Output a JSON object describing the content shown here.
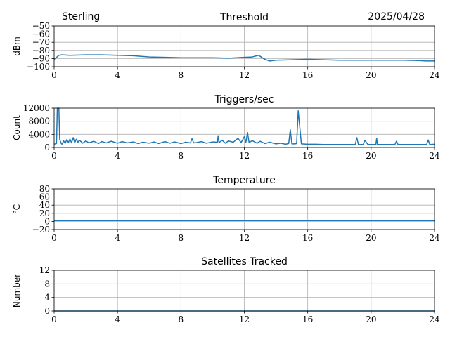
{
  "header": {
    "station": "Sterling",
    "date": "2025/04/28"
  },
  "chart_data": [
    {
      "type": "line",
      "title": "Threshold",
      "ylabel": "dBm",
      "xlim": [
        0,
        24
      ],
      "xticks": [
        "0",
        "4",
        "8",
        "12",
        "16",
        "20",
        "24"
      ],
      "ylim": [
        -100,
        -50
      ],
      "yticks": [
        "−100",
        "−90",
        "−80",
        "−70",
        "−60",
        "−50"
      ],
      "grid": true,
      "color": "#1f77b4",
      "series": [
        {
          "x": [
            0,
            0.3,
            0.5,
            1,
            2,
            3,
            4,
            5,
            6,
            7,
            8,
            9,
            10,
            11,
            12,
            12.5,
            12.9,
            13.3,
            13.6,
            14,
            15,
            16,
            17,
            18,
            19,
            20,
            21,
            22,
            23,
            23.5,
            24
          ],
          "y": [
            -91,
            -86,
            -85.5,
            -86,
            -85.5,
            -85.5,
            -86,
            -86.5,
            -88,
            -88.5,
            -89,
            -89,
            -89,
            -89.5,
            -88.5,
            -88,
            -86,
            -91,
            -93,
            -92,
            -91.5,
            -91,
            -91.5,
            -92,
            -92,
            -92,
            -92,
            -92,
            -92.5,
            -93,
            -93
          ]
        }
      ]
    },
    {
      "type": "line",
      "title": "Triggers/sec",
      "ylabel": "Count",
      "xlim": [
        0,
        24
      ],
      "xticks": [
        "0",
        "4",
        "8",
        "12",
        "16",
        "20",
        "24"
      ],
      "ylim": [
        0,
        12000
      ],
      "yticks": [
        "0",
        "4000",
        "8000",
        "12000"
      ],
      "grid": true,
      "color": "#1f77b4",
      "series": [
        {
          "x": [
            0,
            0.15,
            0.2,
            0.25,
            0.3,
            0.35,
            0.45,
            0.5,
            0.6,
            0.7,
            0.8,
            0.9,
            1.0,
            1.1,
            1.2,
            1.3,
            1.4,
            1.5,
            1.6,
            1.8,
            2.0,
            2.2,
            2.5,
            2.8,
            3.0,
            3.3,
            3.6,
            4.0,
            4.3,
            4.6,
            5.0,
            5.3,
            5.6,
            6.0,
            6.3,
            6.6,
            7.0,
            7.3,
            7.6,
            8.0,
            8.3,
            8.6,
            8.7,
            8.8,
            9.0,
            9.3,
            9.6,
            10.0,
            10.3,
            10.35,
            10.4,
            10.6,
            10.8,
            11.0,
            11.3,
            11.6,
            11.8,
            12.0,
            12.1,
            12.2,
            12.3,
            12.5,
            12.8,
            13.0,
            13.3,
            13.6,
            14.0,
            14.3,
            14.6,
            14.8,
            14.9,
            15.0,
            15.2,
            15.3,
            15.4,
            15.6,
            16.0,
            16.5,
            17.0,
            17.5,
            18.0,
            18.5,
            19.0,
            19.1,
            19.2,
            19.5,
            19.6,
            19.8,
            20.0,
            20.3,
            20.35,
            20.4,
            20.8,
            21.0,
            21.5,
            21.6,
            21.7,
            22.0,
            22.5,
            23.0,
            23.5,
            23.6,
            23.7,
            24.0
          ],
          "y": [
            1000,
            1200,
            12000,
            11500,
            12000,
            2500,
            1200,
            1000,
            2000,
            1300,
            2400,
            1500,
            2600,
            1400,
            3000,
            1500,
            2500,
            1600,
            2200,
            1300,
            2000,
            1400,
            1900,
            1200,
            1800,
            1400,
            1900,
            1300,
            1800,
            1400,
            1700,
            1200,
            1600,
            1300,
            1700,
            1200,
            1800,
            1300,
            1700,
            1200,
            1600,
            1400,
            2700,
            1400,
            1500,
            1800,
            1300,
            1700,
            1600,
            3600,
            1500,
            2200,
            1300,
            2000,
            1600,
            2800,
            1500,
            3300,
            1600,
            4600,
            1500,
            2100,
            1300,
            1900,
            1200,
            1600,
            1100,
            1300,
            1000,
            1200,
            5400,
            1100,
            1100,
            1200,
            11200,
            1100,
            1000,
            1000,
            900,
            900,
            900,
            900,
            900,
            3000,
            900,
            900,
            2200,
            900,
            900,
            900,
            2800,
            900,
            900,
            900,
            900,
            1900,
            900,
            900,
            900,
            900,
            900,
            2300,
            900,
            1000
          ]
        }
      ]
    },
    {
      "type": "line",
      "title": "Temperature",
      "ylabel": "°C",
      "xlim": [
        0,
        24
      ],
      "xticks": [
        "0",
        "4",
        "8",
        "12",
        "16",
        "20",
        "24"
      ],
      "ylim": [
        -20,
        80
      ],
      "yticks": [
        "−20",
        "0",
        "20",
        "40",
        "60",
        "80"
      ],
      "grid": true,
      "color": "#1f77b4",
      "series": [
        {
          "x": [
            0,
            24
          ],
          "y": [
            2,
            2
          ]
        }
      ]
    },
    {
      "type": "line",
      "title": "Satellites Tracked",
      "ylabel": "Number",
      "xlim": [
        0,
        24
      ],
      "xticks": [
        "0",
        "4",
        "8",
        "12",
        "16",
        "20",
        "24"
      ],
      "ylim": [
        0,
        12
      ],
      "yticks": [
        "0",
        "4",
        "8",
        "12"
      ],
      "grid": true,
      "color": "#1f77b4",
      "series": [
        {
          "x": [
            0,
            24
          ],
          "y": [
            0,
            0
          ]
        }
      ]
    }
  ]
}
